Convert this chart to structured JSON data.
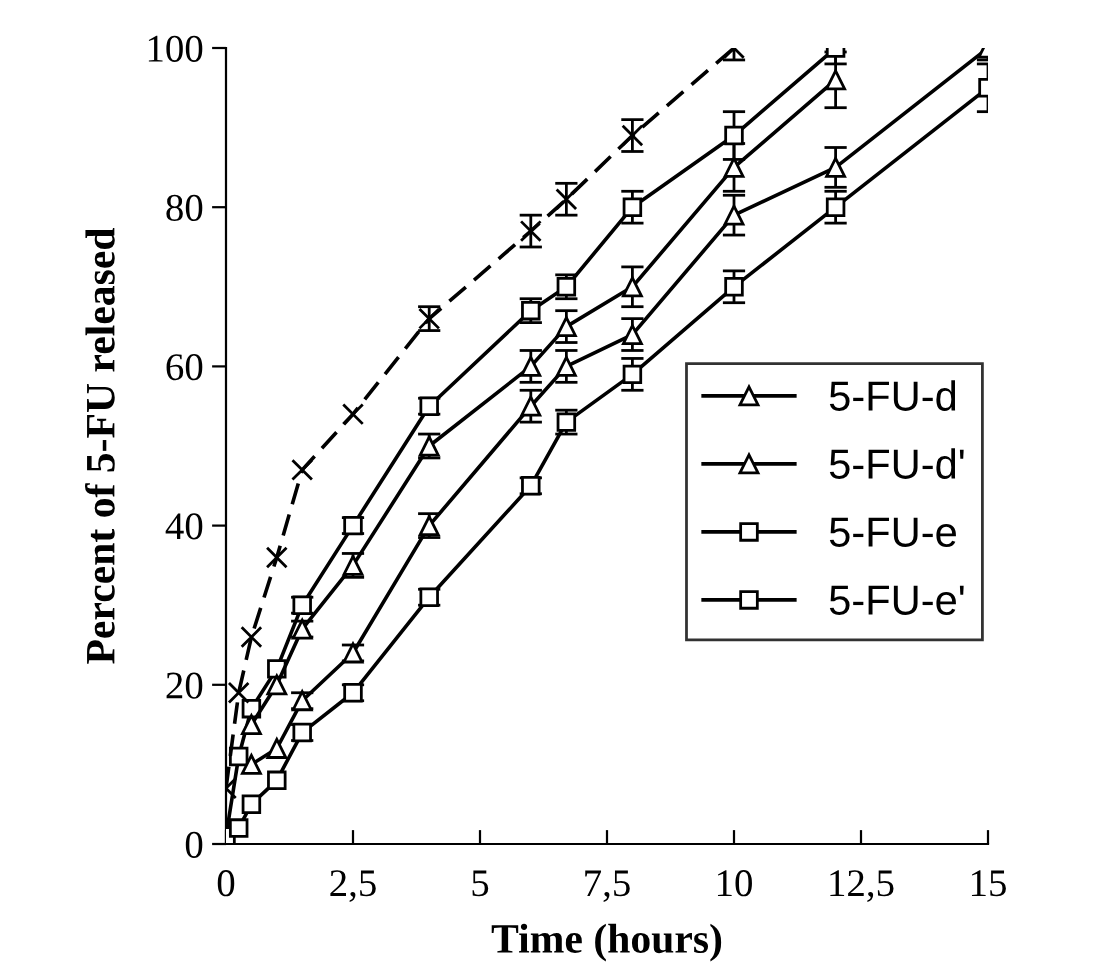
{
  "chart_data": {
    "type": "line",
    "xlabel": "Time (hours)",
    "ylabel": "Percent of 5-FU released",
    "xlim": [
      0,
      15
    ],
    "ylim": [
      0,
      100
    ],
    "xticks": [
      0,
      {
        "value": 2.5,
        "label": "2,5"
      },
      5,
      {
        "value": 7.5,
        "label": "7,5"
      },
      10,
      {
        "value": 12.5,
        "label": "12,5"
      },
      15
    ],
    "yticks": [
      0,
      20,
      40,
      60,
      80,
      100
    ],
    "grid": false,
    "legend": "right",
    "series": [
      {
        "color": "#000000",
        "marker": "cross",
        "line_style": "dashed",
        "x": [
          0,
          0.25,
          0.5,
          1,
          1.5,
          2.5,
          4,
          6,
          6.7,
          8,
          10
        ],
        "values": [
          7,
          19,
          26,
          36,
          47,
          54,
          66,
          77,
          81,
          89,
          100
        ],
        "errors": [
          null,
          null,
          null,
          null,
          null,
          null,
          1.5,
          2,
          2,
          2,
          1.5
        ]
      },
      {
        "name": "5-FU-d",
        "color": "#000000",
        "marker": "triangle",
        "line_style": "solid",
        "x": [
          0.5,
          1,
          1.5,
          2.5,
          4,
          6,
          6.7,
          8,
          10,
          12,
          15
        ],
        "values": [
          10,
          12,
          18,
          24,
          40,
          55,
          60,
          64,
          79,
          85,
          100
        ],
        "errors": [
          null,
          null,
          1,
          1,
          1.5,
          2,
          2,
          2,
          2.5,
          2.5,
          1.5
        ]
      },
      {
        "name": "5-FU-d'",
        "color": "#000000",
        "marker": "triangle",
        "line_style": "solid",
        "x": [
          0.5,
          1,
          1.5,
          2.5,
          4,
          6,
          6.7,
          8,
          10,
          12
        ],
        "values": [
          15,
          20,
          27,
          35,
          50,
          60,
          65,
          70,
          85,
          96
        ],
        "errors": [
          null,
          null,
          1,
          1.5,
          1.5,
          2,
          2,
          2.5,
          3,
          3.5
        ]
      },
      {
        "name": "5-FU-e",
        "color": "#000000",
        "marker": "square",
        "line_style": "solid",
        "x": [
          0.25,
          0.5,
          1,
          1.5,
          2.5,
          4,
          6,
          6.7,
          8,
          10,
          12,
          15
        ],
        "values": [
          2,
          5,
          8,
          14,
          19,
          31,
          45,
          53,
          59,
          70,
          80,
          95
        ],
        "errors": [
          null,
          null,
          null,
          1,
          1,
          1,
          1,
          1.5,
          2,
          2,
          2,
          3
        ]
      },
      {
        "name": "5-FU-e'",
        "color": "#000000",
        "marker": "square",
        "line_style": "solid",
        "x": [
          0,
          0.25,
          0.5,
          1,
          1.5,
          2.5,
          4,
          6,
          6.7,
          8,
          10,
          12
        ],
        "values": [
          1,
          11,
          17,
          22,
          30,
          40,
          55,
          67,
          70,
          80,
          89,
          100
        ],
        "errors": [
          null,
          null,
          null,
          null,
          1,
          1,
          1,
          1.5,
          1.5,
          2,
          3,
          2
        ]
      }
    ]
  }
}
